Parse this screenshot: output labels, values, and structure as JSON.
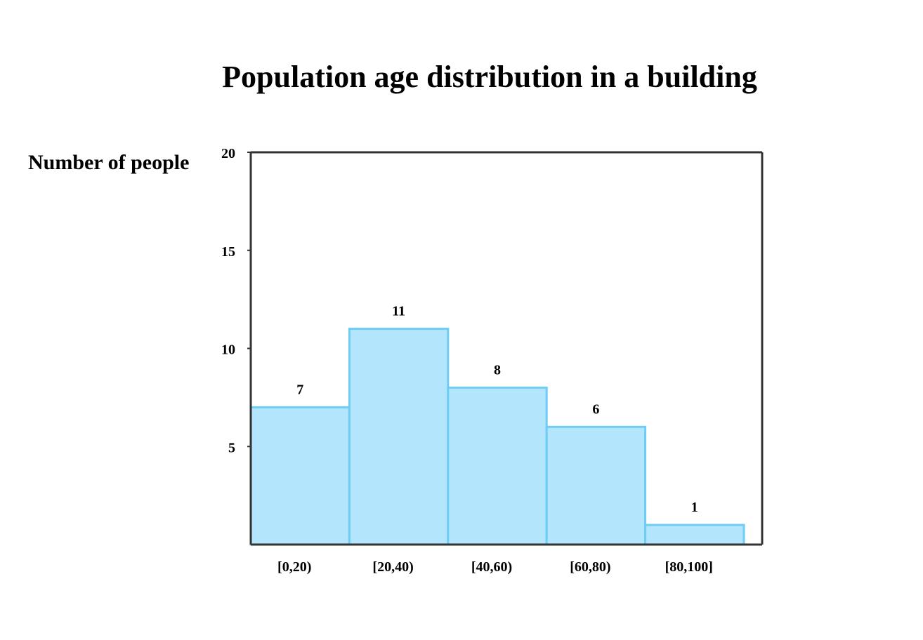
{
  "chart_data": {
    "type": "bar",
    "title": "Population age distribution in a building",
    "xlabel": "",
    "ylabel": "Number of people",
    "categories": [
      "[0,20)",
      "[20,40)",
      "[40,60)",
      "[60,80)",
      "[80,100]"
    ],
    "values": [
      7,
      11,
      8,
      6,
      1
    ],
    "data_labels": [
      "7",
      "11",
      "8",
      "6",
      "1"
    ],
    "ylim": [
      0,
      20
    ],
    "yticks": [
      "5",
      "10",
      "15",
      "20"
    ],
    "grid": false,
    "legend": "none",
    "colors": {
      "bar_fill": "#b3e5fc",
      "bar_stroke": "#6fcdf5",
      "axis": "#333333"
    }
  }
}
